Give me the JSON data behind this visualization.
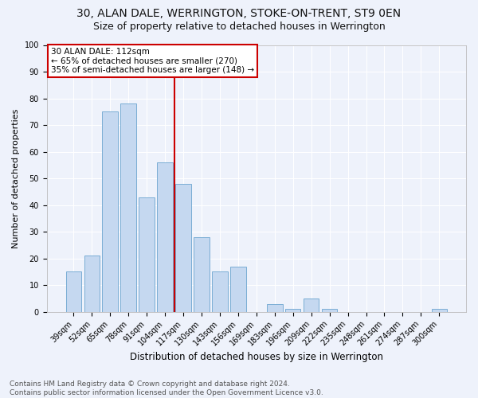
{
  "title": "30, ALAN DALE, WERRINGTON, STOKE-ON-TRENT, ST9 0EN",
  "subtitle": "Size of property relative to detached houses in Werrington",
  "xlabel": "Distribution of detached houses by size in Werrington",
  "ylabel": "Number of detached properties",
  "categories": [
    "39sqm",
    "52sqm",
    "65sqm",
    "78sqm",
    "91sqm",
    "104sqm",
    "117sqm",
    "130sqm",
    "143sqm",
    "156sqm",
    "169sqm",
    "183sqm",
    "196sqm",
    "209sqm",
    "222sqm",
    "235sqm",
    "248sqm",
    "261sqm",
    "274sqm",
    "287sqm",
    "300sqm"
  ],
  "values": [
    15,
    21,
    75,
    78,
    43,
    56,
    48,
    28,
    15,
    17,
    0,
    3,
    1,
    5,
    1,
    0,
    0,
    0,
    0,
    0,
    1
  ],
  "bar_color": "#c5d8f0",
  "bar_edge_color": "#7aadd4",
  "background_color": "#eef2fb",
  "grid_color": "#ffffff",
  "annotation_vline_x": 5.5,
  "annotation_text_line1": "30 ALAN DALE: 112sqm",
  "annotation_text_line2": "← 65% of detached houses are smaller (270)",
  "annotation_text_line3": "35% of semi-detached houses are larger (148) →",
  "annotation_box_color": "#cc0000",
  "vline_color": "#cc0000",
  "footer_text": "Contains HM Land Registry data © Crown copyright and database right 2024.\nContains public sector information licensed under the Open Government Licence v3.0.",
  "ylim": [
    0,
    100
  ],
  "yticks": [
    0,
    10,
    20,
    30,
    40,
    50,
    60,
    70,
    80,
    90,
    100
  ],
  "title_fontsize": 10,
  "subtitle_fontsize": 9,
  "xlabel_fontsize": 8.5,
  "ylabel_fontsize": 8,
  "tick_fontsize": 7,
  "annotation_fontsize": 7.5,
  "footer_fontsize": 6.5
}
